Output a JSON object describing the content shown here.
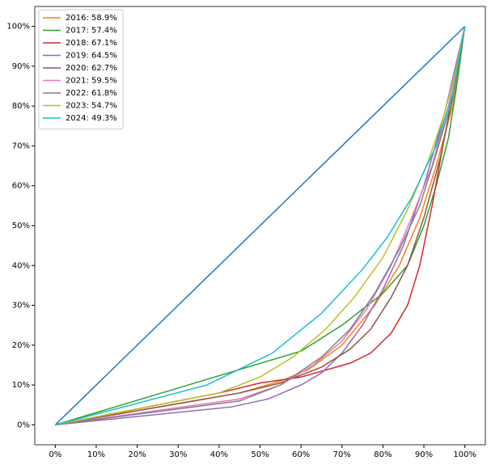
{
  "chart_data": {
    "type": "line",
    "legend": "upper left",
    "grid": false,
    "xlim": [
      -5,
      105
    ],
    "ylim": [
      -5,
      105
    ],
    "xticks": [
      {
        "value": 0,
        "label": "0%"
      },
      {
        "value": 10,
        "label": "10%"
      },
      {
        "value": 20,
        "label": "20%"
      },
      {
        "value": 30,
        "label": "30%"
      },
      {
        "value": 40,
        "label": "40%"
      },
      {
        "value": 50,
        "label": "50%"
      },
      {
        "value": 60,
        "label": "60%"
      },
      {
        "value": 70,
        "label": "70%"
      },
      {
        "value": 80,
        "label": "80%"
      },
      {
        "value": 90,
        "label": "90%"
      },
      {
        "value": 100,
        "label": "100%"
      }
    ],
    "yticks": [
      {
        "value": 0,
        "label": "0%"
      },
      {
        "value": 10,
        "label": "10%"
      },
      {
        "value": 20,
        "label": "20%"
      },
      {
        "value": 30,
        "label": "30%"
      },
      {
        "value": 40,
        "label": "40%"
      },
      {
        "value": 50,
        "label": "50%"
      },
      {
        "value": 60,
        "label": "60%"
      },
      {
        "value": 70,
        "label": "70%"
      },
      {
        "value": 80,
        "label": "80%"
      },
      {
        "value": 90,
        "label": "90%"
      },
      {
        "value": 100,
        "label": "100%"
      }
    ],
    "series": [
      {
        "color": "#1f77b4",
        "x": [
          0,
          100
        ],
        "values": [
          0,
          100
        ]
      },
      {
        "name": "2016: 58.9%",
        "color": "#ff7f0e",
        "x": [
          0,
          45,
          55,
          62,
          70,
          78,
          84,
          89,
          93,
          97,
          100
        ],
        "values": [
          0,
          8,
          11,
          14,
          20,
          30,
          40,
          52,
          65,
          80,
          100
        ]
      },
      {
        "name": "2017: 57.4%",
        "color": "#2ca02c",
        "x": [
          0,
          60,
          70,
          80,
          86,
          90,
          93,
          96,
          98,
          100
        ],
        "values": [
          0,
          18.5,
          25,
          33,
          40,
          50,
          60,
          72,
          85,
          100
        ]
      },
      {
        "name": "2018: 67.1%",
        "color": "#d62728",
        "x": [
          0,
          40,
          50,
          60,
          72,
          77,
          82,
          86,
          89,
          92,
          95,
          98,
          100
        ],
        "values": [
          0,
          8,
          10.5,
          12,
          15.5,
          18,
          23,
          30,
          40,
          55,
          72,
          88,
          100
        ]
      },
      {
        "name": "2019: 64.5%",
        "color": "#9467bd",
        "x": [
          0,
          43,
          52,
          60,
          65,
          70,
          75,
          80,
          85,
          90,
          95,
          100
        ],
        "values": [
          0,
          4.5,
          6.5,
          10,
          13,
          18,
          25,
          34,
          45,
          60,
          78,
          100
        ]
      },
      {
        "name": "2020: 62.7%",
        "color": "#8c564b",
        "x": [
          0,
          45,
          55,
          65,
          72,
          77,
          82,
          86,
          90,
          94,
          97,
          100
        ],
        "values": [
          0,
          8,
          10.5,
          14.5,
          19,
          24,
          32,
          40,
          52,
          67,
          82,
          100
        ]
      },
      {
        "name": "2021: 59.5%",
        "color": "#e377c2",
        "x": [
          0,
          45,
          55,
          63,
          70,
          76,
          82,
          87,
          92,
          96,
          100
        ],
        "values": [
          0,
          6.5,
          10,
          15,
          21,
          29,
          40,
          52,
          65,
          80,
          100
        ]
      },
      {
        "name": "2022: 61.8%",
        "color": "#7f7f7f",
        "x": [
          0,
          45,
          55,
          65,
          72,
          78,
          84,
          89,
          93,
          97,
          100
        ],
        "values": [
          0,
          6,
          10,
          17,
          24,
          33,
          44,
          55,
          68,
          82,
          100
        ]
      },
      {
        "name": "2023: 54.7%",
        "color": "#bcbd22",
        "x": [
          0,
          40,
          50,
          58,
          66,
          73,
          80,
          86,
          91,
          95,
          98,
          100
        ],
        "values": [
          0,
          8,
          12,
          17,
          24,
          32,
          42,
          54,
          66,
          78,
          90,
          100
        ]
      },
      {
        "name": "2024: 49.3%",
        "color": "#17becf",
        "x": [
          0,
          37,
          53,
          65,
          75,
          81,
          87,
          93,
          97,
          100
        ],
        "values": [
          0,
          10,
          18,
          28,
          39,
          47,
          57,
          70,
          83,
          100
        ]
      }
    ]
  }
}
